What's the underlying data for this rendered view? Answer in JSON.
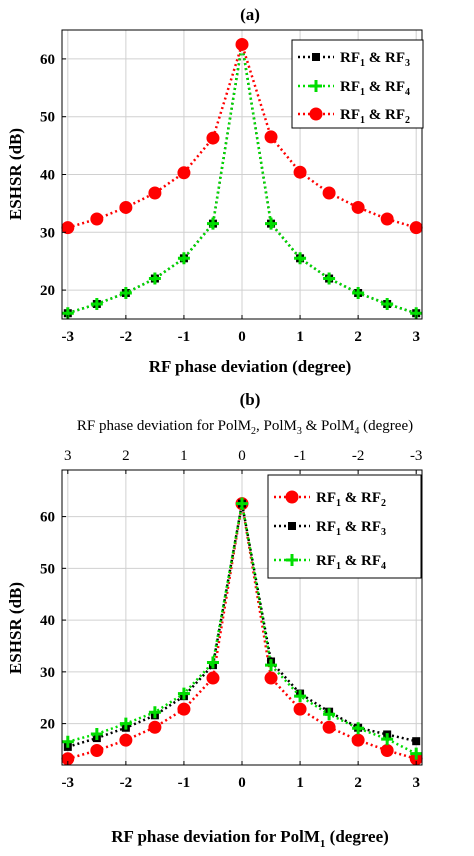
{
  "chart_data": [
    {
      "type": "line",
      "title": "(a)",
      "xlabel": "RF phase deviation (degree)",
      "ylabel": "ESHSR (dB)",
      "xlim": [
        -3.1,
        3.1
      ],
      "ylim": [
        15,
        65
      ],
      "xticks": [
        -3,
        -2,
        -1,
        0,
        1,
        2,
        3
      ],
      "xtick_labels": [
        "-3",
        "-2",
        "-1",
        "0",
        "1",
        "2",
        "3"
      ],
      "yticks": [
        20,
        30,
        40,
        50,
        60
      ],
      "ytick_labels": [
        "20",
        "30",
        "40",
        "50",
        "60"
      ],
      "grid": true,
      "legend_position": "top-right",
      "x": [
        -3,
        -2.5,
        -2,
        -1.5,
        -1,
        -0.5,
        0,
        0.5,
        1,
        1.5,
        2,
        2.5,
        3
      ],
      "series": [
        {
          "legend_main1": "RF",
          "legend_sub1": "1",
          "legend_amp": "& RF",
          "legend_sub2": "3",
          "color": "#000000",
          "marker": "square",
          "values": [
            16,
            17.6,
            19.5,
            22,
            25.5,
            31.5,
            62.5,
            31.5,
            25.5,
            22,
            19.5,
            17.6,
            16
          ]
        },
        {
          "legend_main1": "RF",
          "legend_sub1": "1",
          "legend_amp": "& RF",
          "legend_sub2": "4",
          "color": "#00dd00",
          "marker": "plus",
          "values": [
            16,
            17.6,
            19.5,
            22,
            25.5,
            31.5,
            62.5,
            31.5,
            25.5,
            22,
            19.5,
            17.6,
            16
          ]
        },
        {
          "legend_main1": "RF",
          "legend_sub1": "1",
          "legend_amp": "& RF",
          "legend_sub2": "2",
          "color": "#ff0000",
          "marker": "circle",
          "values": [
            30.8,
            32.3,
            34.3,
            36.8,
            40.3,
            46.3,
            62.5,
            46.5,
            40.4,
            36.8,
            34.3,
            32.3,
            30.8
          ]
        }
      ]
    },
    {
      "type": "line",
      "title": "(b)",
      "xlabel_main": "RF phase deviation for PolM",
      "xlabel_sub": "1",
      "xlabel_tail": " (degree)",
      "top_xlabel_parts": [
        "RF phase deviation for PolM",
        "2",
        ", PolM",
        "3",
        " & PolM",
        "4",
        " (degree)"
      ],
      "ylabel": "ESHSR (dB)",
      "xlim": [
        -3.1,
        3.1
      ],
      "ylim": [
        12,
        69
      ],
      "xticks": [
        -3,
        -2,
        -1,
        0,
        1,
        2,
        3
      ],
      "xtick_labels": [
        "-3",
        "-2",
        "-1",
        "0",
        "1",
        "2",
        "3"
      ],
      "top_xtick_labels": [
        "3",
        "2",
        "1",
        "0",
        "-1",
        "-2",
        "-3"
      ],
      "yticks": [
        20,
        30,
        40,
        50,
        60
      ],
      "ytick_labels": [
        "20",
        "30",
        "40",
        "50",
        "60"
      ],
      "grid": true,
      "legend_position": "top-right",
      "x": [
        -3,
        -2.5,
        -2,
        -1.5,
        -1,
        -0.5,
        0,
        0.5,
        1,
        1.5,
        2,
        2.5,
        3
      ],
      "series": [
        {
          "legend_main1": "RF",
          "legend_sub1": "1",
          "legend_amp": "& RF",
          "legend_sub2": "2",
          "color": "#ff0000",
          "marker": "circle",
          "values": [
            13.2,
            14.8,
            16.8,
            19.3,
            22.8,
            28.8,
            62.5,
            28.8,
            22.8,
            19.3,
            16.8,
            14.8,
            13.2
          ]
        },
        {
          "legend_main1": "RF",
          "legend_sub1": "1",
          "legend_amp": "& RF",
          "legend_sub2": "3",
          "color": "#000000",
          "marker": "square",
          "values": [
            15.5,
            17.2,
            19.2,
            21.6,
            25.3,
            31.3,
            62.5,
            32,
            25.8,
            22.3,
            19.2,
            17.9,
            16.6
          ]
        },
        {
          "legend_main1": "RF",
          "legend_sub1": "1",
          "legend_amp": "& RF",
          "legend_sub2": "4",
          "color": "#00dd00",
          "marker": "plus",
          "values": [
            16.5,
            18,
            20,
            22.2,
            25.8,
            31.8,
            62.5,
            31.3,
            25.3,
            21.8,
            19.1,
            17,
            14.2
          ]
        }
      ]
    }
  ]
}
